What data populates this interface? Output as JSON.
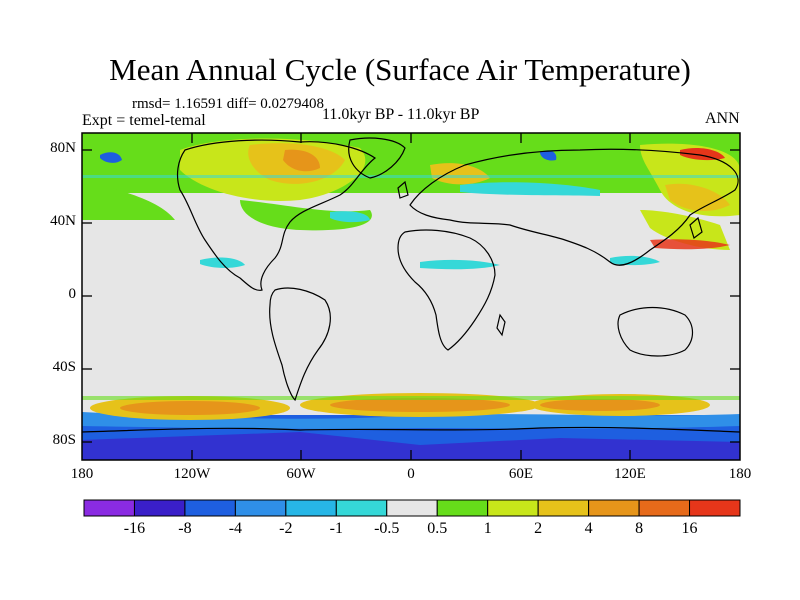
{
  "figure": {
    "title": "Mean Annual Cycle (Surface Air Temperature)",
    "stats": "rmsd= 1.16591  diff= 0.0279408",
    "experiment": "Expt = temel-temal",
    "period": "11.0kyr BP - 11.0kyr BP",
    "season": "ANN"
  },
  "axes": {
    "lat_labels": [
      "80N",
      "40N",
      "0",
      "40S",
      "80S"
    ],
    "lon_labels": [
      "180",
      "120W",
      "60W",
      "0",
      "60E",
      "120E",
      "180"
    ]
  },
  "colorbar": {
    "levels": [
      "-16",
      "-8",
      "-4",
      "-2",
      "-1",
      "-0.5",
      "0.5",
      "1",
      "2",
      "4",
      "8",
      "16"
    ],
    "colors": [
      "#8a2be2",
      "#3a1fc9",
      "#1e5fe0",
      "#2f8fe8",
      "#27b6e6",
      "#35d8d8",
      "#e6e6e6",
      "#66dd1a",
      "#c8e61a",
      "#e6c21a",
      "#e6951a",
      "#e66a1a",
      "#e6361a"
    ]
  },
  "background_color": "#e6e6e6"
}
